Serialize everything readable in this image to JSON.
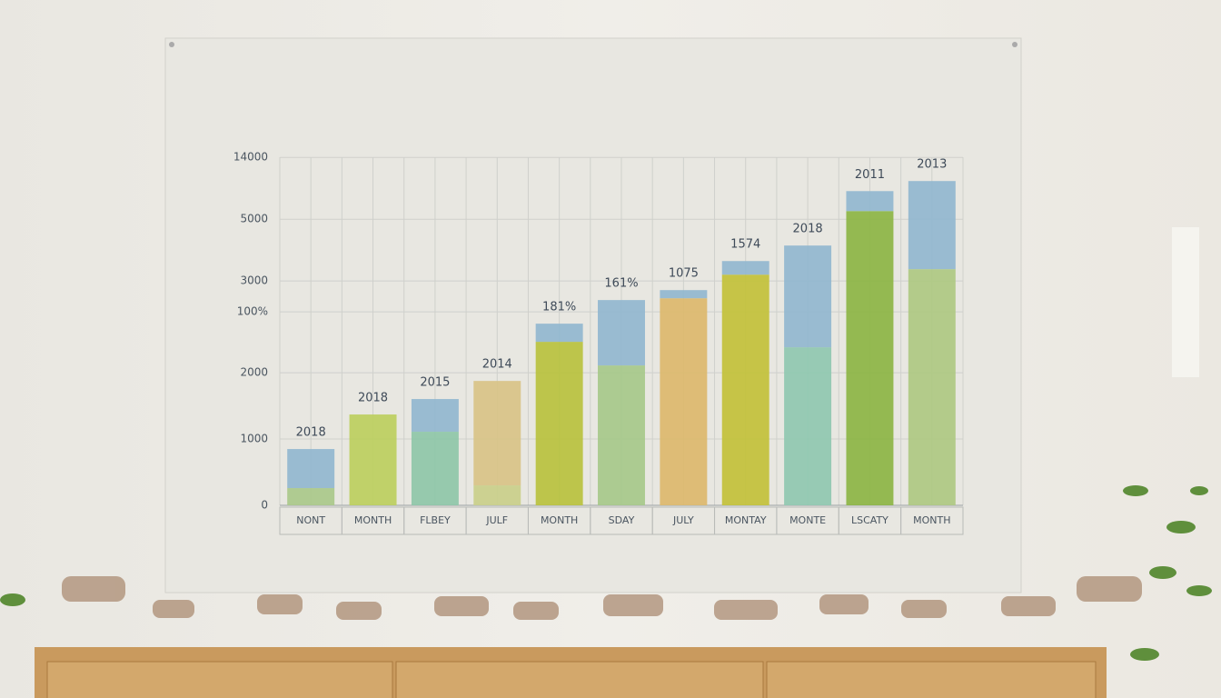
{
  "chart_data": {
    "type": "stacked-bar",
    "categories": [
      "NONT",
      "MONTH",
      "FLBEY",
      "JULF",
      "MONTH",
      "SDAY",
      "JULY",
      "MONTAY",
      "MONTE",
      "LSCATY",
      "MONTH"
    ],
    "bar_labels": [
      "2018",
      "2018",
      "2015",
      "2014",
      "181%",
      "161%",
      "1075",
      "1574",
      "2018",
      "2011",
      "2013"
    ],
    "series": [
      {
        "colors": [
          "#a9c98a",
          "#bccf5e",
          "#8ec7a8",
          "#c9cf8a",
          "#b8c23e",
          "#a6c98a",
          "#dcb96c",
          "#c2c13a",
          "#8fc8b0",
          "#8cb544",
          "#aec982"
        ],
        "values": [
          260,
          1370,
          1110,
          301,
          2466,
          2110,
          3123,
          3479,
          2384,
          4438,
          3562
        ]
      },
      {
        "color": "#91b7cf",
        "colors": [
          "#91b7cf",
          null,
          "#91b7cf",
          "#d8c387",
          "#91b7cf",
          "#91b7cf",
          "#91b7cf",
          "#91b7cf",
          "#91b7cf",
          "#91b7cf",
          "#91b7cf"
        ],
        "values": [
          589,
          null,
          493,
          1575,
          274,
          986,
          123,
          205,
          1534,
          301,
          1329
        ]
      }
    ],
    "ylim": [
      0,
      5250
    ],
    "yticks": [
      0,
      1000,
      2000,
      {
        "value": 2918,
        "label": "100%"
      },
      {
        "value": 3384,
        "label": "3000"
      },
      {
        "value": 4315,
        "label": "5000"
      },
      {
        "value": 5247,
        "label": "14000"
      }
    ],
    "grid": true
  }
}
